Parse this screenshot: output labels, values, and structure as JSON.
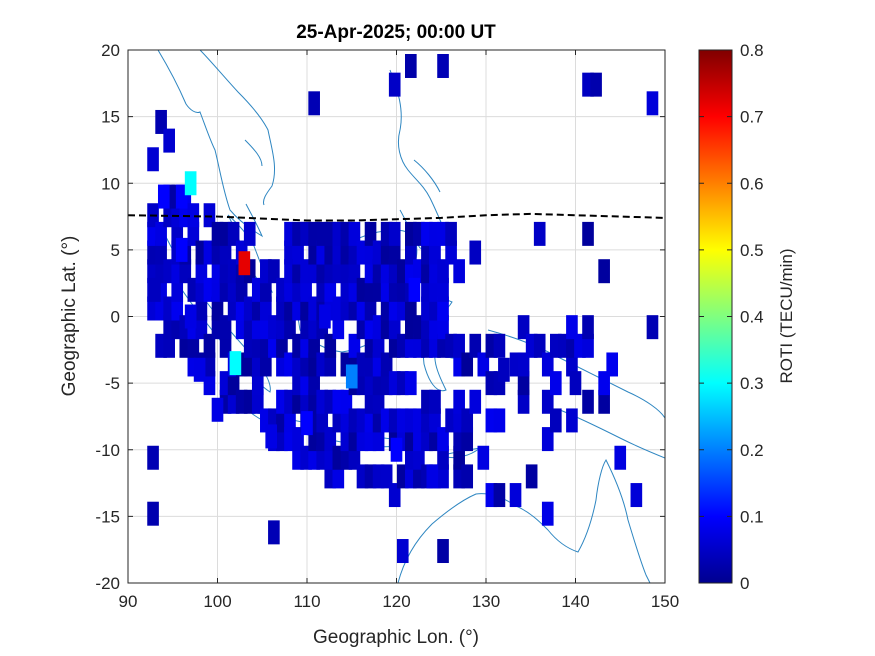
{
  "chart_data": {
    "type": "heatmap",
    "title": "25-Apr-2025; 00:00 UT",
    "xlabel": "Geographic Lon. (°)",
    "ylabel": "Geographic Lat. (°)",
    "xlim": [
      90,
      150
    ],
    "ylim": [
      -20,
      20
    ],
    "xticks": [
      "90",
      "100",
      "110",
      "120",
      "130",
      "140",
      "150"
    ],
    "yticks": [
      "20",
      "15",
      "10",
      "5",
      "0",
      "-5",
      "-10",
      "-15",
      "-20"
    ],
    "grid": true,
    "colorbar": {
      "label": "ROTI (TECU/min)",
      "range": [
        0,
        0.8
      ],
      "ticks": [
        "0",
        "0.1",
        "0.2",
        "0.3",
        "0.4",
        "0.5",
        "0.6",
        "0.7",
        "0.8"
      ],
      "colormap": "jet"
    },
    "magnetic_equator": {
      "style": "black dashed",
      "points": [
        [
          90,
          7.6
        ],
        [
          100,
          7.5
        ],
        [
          110,
          7.2
        ],
        [
          115,
          7.2
        ],
        [
          120,
          7.3
        ],
        [
          125,
          7.4
        ],
        [
          130,
          7.6
        ],
        [
          135,
          7.7
        ],
        [
          140,
          7.6
        ],
        [
          145,
          7.5
        ],
        [
          150,
          7.4
        ]
      ]
    },
    "coastline_color": "#2e86c1",
    "roti_cells": [
      {
        "lon": 93,
        "lat": 2,
        "roti": 0.05
      },
      {
        "lon": 94,
        "lat": 9,
        "roti": 0.1
      },
      {
        "lon": 96,
        "lat": 9,
        "roti": 0.1
      },
      {
        "lon": 97,
        "lat": 10,
        "roti": 0.3
      },
      {
        "lon": 96,
        "lat": 5,
        "roti": 0.1
      },
      {
        "lon": 97,
        "lat": 0,
        "roti": 0.08
      },
      {
        "lon": 98,
        "lat": -4,
        "roti": 0.08
      },
      {
        "lon": 100,
        "lat": -7,
        "roti": 0.08
      },
      {
        "lon": 103,
        "lat": 4,
        "roti": 0.72
      },
      {
        "lon": 102,
        "lat": -3.5,
        "roti": 0.3
      },
      {
        "lon": 106,
        "lat": -9,
        "roti": 0.08
      },
      {
        "lon": 110,
        "lat": -8,
        "roti": 0.1
      },
      {
        "lon": 115,
        "lat": -4.5,
        "roti": 0.2
      },
      {
        "lon": 112,
        "lat": 0,
        "roti": 0.08
      },
      {
        "lon": 122,
        "lat": 2,
        "roti": 0.1
      },
      {
        "lon": 120,
        "lat": -10,
        "roti": 0.1
      },
      {
        "lon": 124,
        "lat": -12,
        "roti": 0.08
      },
      {
        "lon": 132,
        "lat": -4,
        "roti": 0.05
      },
      {
        "lon": 140,
        "lat": -5,
        "roti": 0.05
      }
    ]
  }
}
